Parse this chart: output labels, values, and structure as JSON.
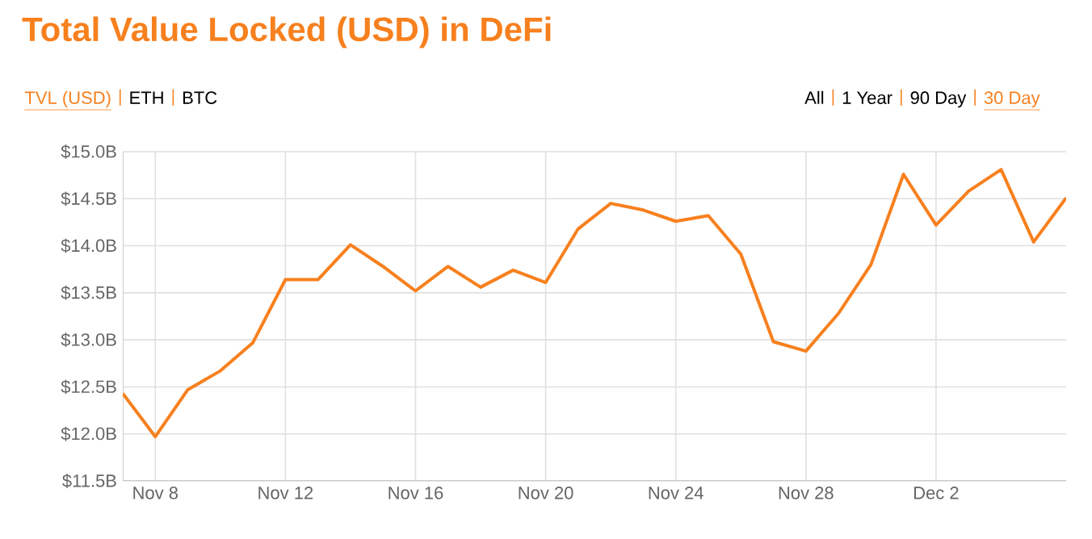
{
  "chart_data": {
    "type": "line",
    "title": "Total Value Locked (USD) in DeFi",
    "annotations": [
      "TVL (USD)",
      "ETH",
      "BTC",
      "All",
      "1 Year",
      "90 Day",
      "30 Day"
    ],
    "categories": [
      null,
      "Nov 8",
      null,
      null,
      null,
      "Nov 12",
      null,
      null,
      null,
      "Nov 16",
      null,
      null,
      null,
      "Nov 20",
      null,
      null,
      null,
      "Nov 24",
      null,
      null,
      null,
      "Nov 28",
      null,
      null,
      null,
      "Dec 2",
      null,
      null,
      null,
      null
    ],
    "values": [
      12.43,
      11.97,
      12.47,
      12.67,
      12.97,
      13.64,
      13.64,
      14.01,
      13.78,
      13.52,
      13.78,
      13.56,
      13.74,
      13.61,
      14.18,
      14.45,
      14.38,
      14.26,
      14.32,
      13.91,
      12.98,
      12.88,
      13.28,
      13.8,
      14.76,
      14.22,
      14.58,
      14.81,
      14.04,
      14.51
    ],
    "color": "#f7801e",
    "ylim": [
      11.5,
      15.0
    ],
    "yticks": [
      {
        "value": 11.5,
        "label": "$11.5B"
      },
      {
        "value": 12.0,
        "label": "$12.0B"
      },
      {
        "value": 12.5,
        "label": "$12.5B"
      },
      {
        "value": 13.0,
        "label": "$13.0B"
      },
      {
        "value": 13.5,
        "label": "$13.5B"
      },
      {
        "value": 14.0,
        "label": "$14.0B"
      },
      {
        "value": 14.5,
        "label": "$14.5B"
      },
      {
        "value": 15.0,
        "label": "$15.0B"
      }
    ],
    "grid": true,
    "marker": "none",
    "line_style": "solid"
  }
}
